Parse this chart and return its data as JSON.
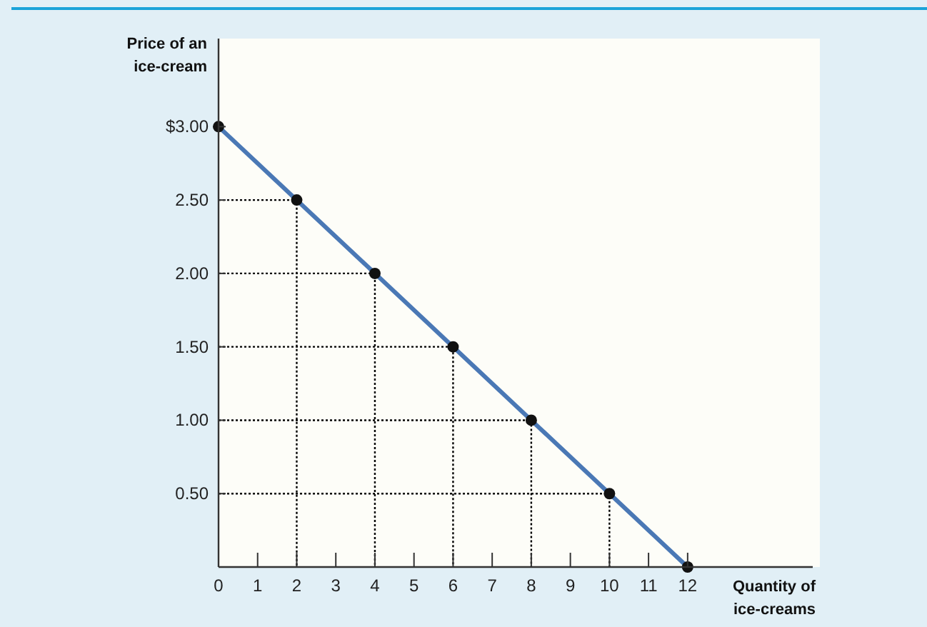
{
  "chart_data": {
    "type": "line",
    "xlabel": "Quantity of ice-creams",
    "ylabel": "Price of an ice-cream",
    "xlim": [
      0,
      15.2
    ],
    "ylim": [
      0,
      3.6
    ],
    "xticks": [
      0,
      1,
      2,
      3,
      4,
      5,
      6,
      7,
      8,
      9,
      10,
      11,
      12
    ],
    "yticks": [
      {
        "value": 0.5,
        "label": "0.50"
      },
      {
        "value": 1,
        "label": "1.00"
      },
      {
        "value": 1.5,
        "label": "1.50"
      },
      {
        "value": 2,
        "label": "2.00"
      },
      {
        "value": 2.5,
        "label": "2.50"
      },
      {
        "value": 3,
        "label": "$3.00"
      }
    ],
    "grid": false,
    "series": [
      {
        "type": "line",
        "color": "#000000",
        "line_style": "dotted",
        "marker": "none",
        "x": [
          0,
          2,
          2
        ],
        "values": [
          2.5,
          2.5,
          0
        ]
      },
      {
        "type": "line",
        "color": "#000000",
        "line_style": "dotted",
        "marker": "none",
        "x": [
          0,
          4,
          4
        ],
        "values": [
          2,
          2,
          0
        ]
      },
      {
        "type": "line",
        "color": "#000000",
        "line_style": "dotted",
        "marker": "none",
        "x": [
          0,
          6,
          6
        ],
        "values": [
          1.5,
          1.5,
          0
        ]
      },
      {
        "type": "line",
        "color": "#000000",
        "line_style": "dotted",
        "marker": "none",
        "x": [
          0,
          8,
          8
        ],
        "values": [
          1,
          1,
          0
        ]
      },
      {
        "type": "line",
        "color": "#000000",
        "line_style": "dotted",
        "marker": "none",
        "x": [
          0,
          10,
          10
        ],
        "values": [
          0.5,
          0.5,
          0
        ]
      },
      {
        "type": "line",
        "color": "#4a78b5",
        "line_style": "solid",
        "marker": "none",
        "x": [
          0,
          12
        ],
        "values": [
          3,
          0
        ]
      },
      {
        "type": "scatter",
        "color": "#111111",
        "marker": "circle",
        "x": [
          0,
          2,
          4,
          6,
          8,
          10,
          12
        ],
        "values": [
          3,
          2.5,
          2,
          1.5,
          1,
          0.5,
          0
        ]
      }
    ]
  }
}
